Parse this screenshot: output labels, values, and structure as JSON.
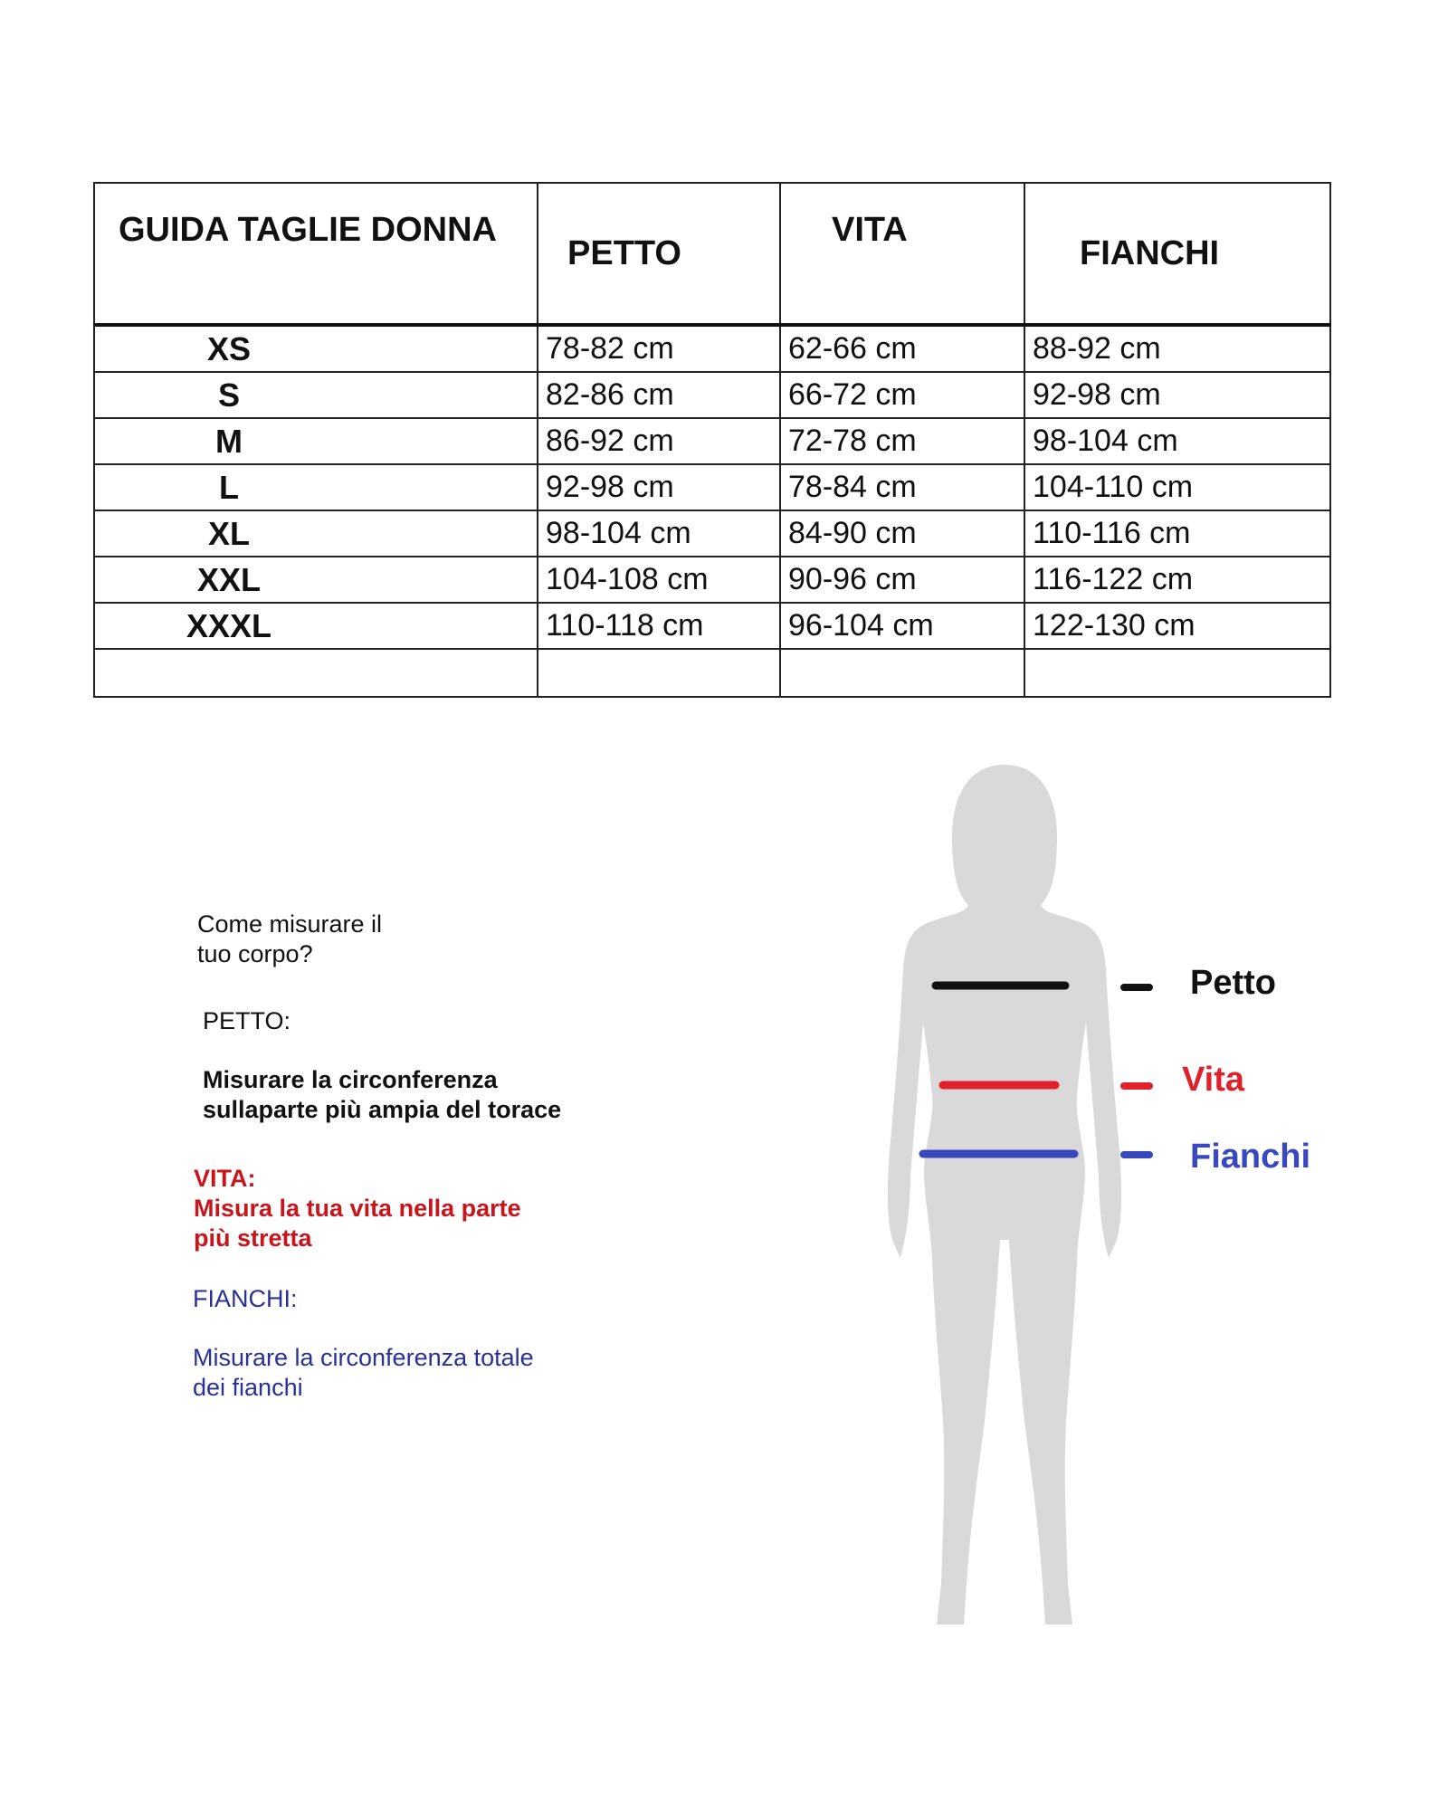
{
  "table": {
    "headers": [
      "GUIDA TAGLIE DONNA",
      "PETTO",
      "VITA",
      "FIANCHI"
    ],
    "rows": [
      {
        "size": "XS",
        "petto": "78-82 cm",
        "vita": "62-66 cm",
        "fianchi": "88-92 cm"
      },
      {
        "size": "S",
        "petto": "82-86 cm",
        "vita": "66-72 cm",
        "fianchi": "92-98 cm"
      },
      {
        "size": "M",
        "petto": "86-92 cm",
        "vita": "72-78 cm",
        "fianchi": "98-104 cm"
      },
      {
        "size": "L",
        "petto": "92-98 cm",
        "vita": "78-84 cm",
        "fianchi": "104-110 cm"
      },
      {
        "size": "XL",
        "petto": "98-104 cm",
        "vita": "84-90 cm",
        "fianchi": "110-116 cm"
      },
      {
        "size": "XXL",
        "petto": "104-108 cm",
        "vita": "90-96 cm",
        "fianchi": "116-122 cm"
      },
      {
        "size": "XXXL",
        "petto": "110-118 cm",
        "vita": "96-104 cm",
        "fianchi": "122-130 cm"
      }
    ]
  },
  "instructions": {
    "intro": "Come misurare il tuo corpo?",
    "petto_title": "PETTO:",
    "petto_text": "Misurare la circonferenza sullaparte più ampia del torace",
    "vita_title": "VITA:",
    "vita_text": "Misura la tua vita nella parte più stretta",
    "fianchi_title": "FIANCHI:",
    "fianchi_text": "Misurare la circonferenza totale dei fianchi"
  },
  "legend": {
    "petto": "Petto",
    "vita": "Vita",
    "fianchi": "Fianchi",
    "colors": {
      "petto": "#111111",
      "vita": "#e0202a",
      "fianchi": "#3a48c0"
    }
  }
}
